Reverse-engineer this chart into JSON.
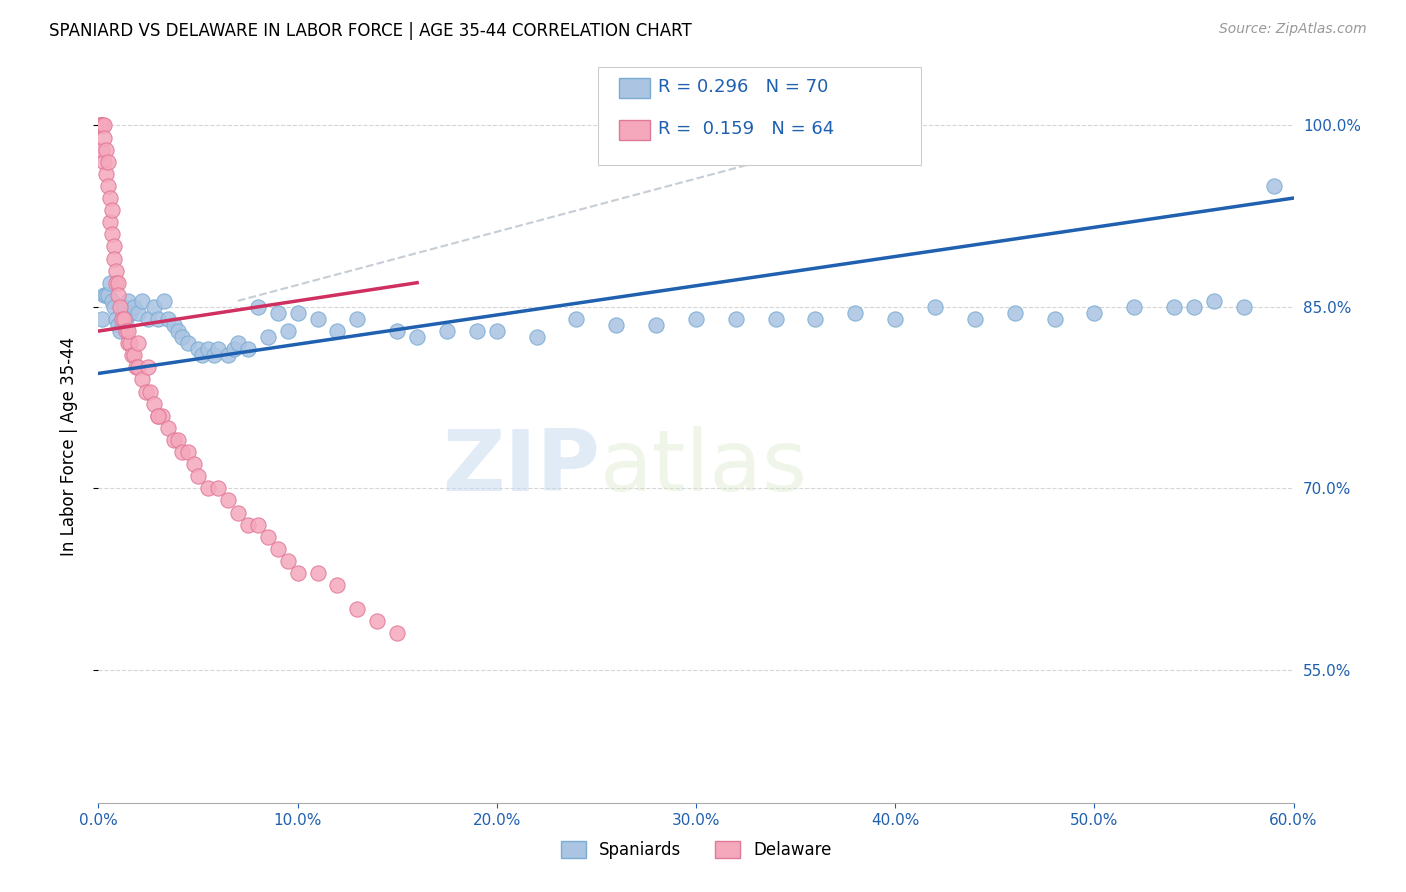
{
  "title": "SPANIARD VS DELAWARE IN LABOR FORCE | AGE 35-44 CORRELATION CHART",
  "source": "Source: ZipAtlas.com",
  "ylabel": "In Labor Force | Age 35-44",
  "xlim": [
    0.0,
    0.6
  ],
  "ylim": [
    0.44,
    1.03
  ],
  "xtick_labels": [
    "0.0%",
    "10.0%",
    "20.0%",
    "30.0%",
    "40.0%",
    "50.0%",
    "60.0%"
  ],
  "xtick_vals": [
    0.0,
    0.1,
    0.2,
    0.3,
    0.4,
    0.5,
    0.6
  ],
  "ytick_labels": [
    "55.0%",
    "70.0%",
    "85.0%",
    "100.0%"
  ],
  "ytick_vals": [
    0.55,
    0.7,
    0.85,
    1.0
  ],
  "spaniard_color": "#aac4e2",
  "delaware_color": "#f5a8bc",
  "spaniard_edge": "#7aacd4",
  "delaware_edge": "#e07898",
  "trend_blue": "#2060b0",
  "trend_pink": "#d03060",
  "trend_dashed_color": "#c0c8d0",
  "R_spaniard": 0.296,
  "N_spaniard": 70,
  "R_delaware": 0.159,
  "N_delaware": 64,
  "legend_label_spaniard": "Spaniards",
  "legend_label_delaware": "Delaware",
  "watermark_zip": "ZIP",
  "watermark_atlas": "atlas",
  "spaniard_x": [
    0.002,
    0.003,
    0.004,
    0.005,
    0.006,
    0.007,
    0.008,
    0.009,
    0.01,
    0.011,
    0.012,
    0.013,
    0.014,
    0.015,
    0.016,
    0.018,
    0.02,
    0.022,
    0.025,
    0.028,
    0.03,
    0.033,
    0.035,
    0.038,
    0.04,
    0.042,
    0.045,
    0.05,
    0.052,
    0.055,
    0.058,
    0.06,
    0.065,
    0.068,
    0.07,
    0.075,
    0.08,
    0.085,
    0.09,
    0.095,
    0.1,
    0.11,
    0.12,
    0.13,
    0.15,
    0.16,
    0.175,
    0.19,
    0.2,
    0.22,
    0.24,
    0.26,
    0.28,
    0.3,
    0.32,
    0.34,
    0.36,
    0.38,
    0.4,
    0.42,
    0.44,
    0.46,
    0.48,
    0.5,
    0.52,
    0.54,
    0.55,
    0.56,
    0.575,
    0.59
  ],
  "spaniard_y": [
    0.84,
    0.86,
    0.86,
    0.86,
    0.87,
    0.855,
    0.85,
    0.84,
    0.835,
    0.83,
    0.84,
    0.85,
    0.84,
    0.855,
    0.845,
    0.85,
    0.845,
    0.855,
    0.84,
    0.85,
    0.84,
    0.855,
    0.84,
    0.835,
    0.83,
    0.825,
    0.82,
    0.815,
    0.81,
    0.815,
    0.81,
    0.815,
    0.81,
    0.815,
    0.82,
    0.815,
    0.85,
    0.825,
    0.845,
    0.83,
    0.845,
    0.84,
    0.83,
    0.84,
    0.83,
    0.825,
    0.83,
    0.83,
    0.83,
    0.825,
    0.84,
    0.835,
    0.835,
    0.84,
    0.84,
    0.84,
    0.84,
    0.845,
    0.84,
    0.85,
    0.84,
    0.845,
    0.84,
    0.845,
    0.85,
    0.85,
    0.85,
    0.855,
    0.85,
    0.95
  ],
  "delaware_x": [
    0.001,
    0.001,
    0.002,
    0.002,
    0.002,
    0.003,
    0.003,
    0.003,
    0.004,
    0.004,
    0.005,
    0.005,
    0.006,
    0.006,
    0.007,
    0.007,
    0.008,
    0.008,
    0.009,
    0.009,
    0.01,
    0.01,
    0.011,
    0.012,
    0.013,
    0.014,
    0.015,
    0.016,
    0.017,
    0.018,
    0.019,
    0.02,
    0.022,
    0.024,
    0.026,
    0.028,
    0.03,
    0.032,
    0.035,
    0.038,
    0.04,
    0.042,
    0.045,
    0.048,
    0.05,
    0.055,
    0.06,
    0.065,
    0.07,
    0.075,
    0.08,
    0.085,
    0.09,
    0.095,
    0.1,
    0.11,
    0.12,
    0.13,
    0.14,
    0.15,
    0.015,
    0.02,
    0.025,
    0.03
  ],
  "delaware_y": [
    1.0,
    1.0,
    1.0,
    1.0,
    0.98,
    1.0,
    0.99,
    0.97,
    0.98,
    0.96,
    0.97,
    0.95,
    0.94,
    0.92,
    0.93,
    0.91,
    0.9,
    0.89,
    0.88,
    0.87,
    0.87,
    0.86,
    0.85,
    0.84,
    0.84,
    0.83,
    0.82,
    0.82,
    0.81,
    0.81,
    0.8,
    0.8,
    0.79,
    0.78,
    0.78,
    0.77,
    0.76,
    0.76,
    0.75,
    0.74,
    0.74,
    0.73,
    0.73,
    0.72,
    0.71,
    0.7,
    0.7,
    0.69,
    0.68,
    0.67,
    0.67,
    0.66,
    0.65,
    0.64,
    0.63,
    0.63,
    0.62,
    0.6,
    0.59,
    0.58,
    0.83,
    0.82,
    0.8,
    0.76
  ]
}
